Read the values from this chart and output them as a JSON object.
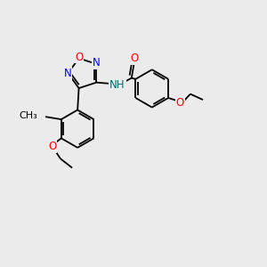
{
  "bg_color": "#ebebeb",
  "bond_color": "#000000",
  "atom_colors": {
    "O": "#ff0000",
    "N": "#0000ff",
    "NH": "#007070",
    "C": "#000000"
  },
  "lw": 1.3,
  "fig_w": 3.0,
  "fig_h": 3.0,
  "dpi": 100,
  "xlim": [
    0,
    10
  ],
  "ylim": [
    0,
    10
  ]
}
